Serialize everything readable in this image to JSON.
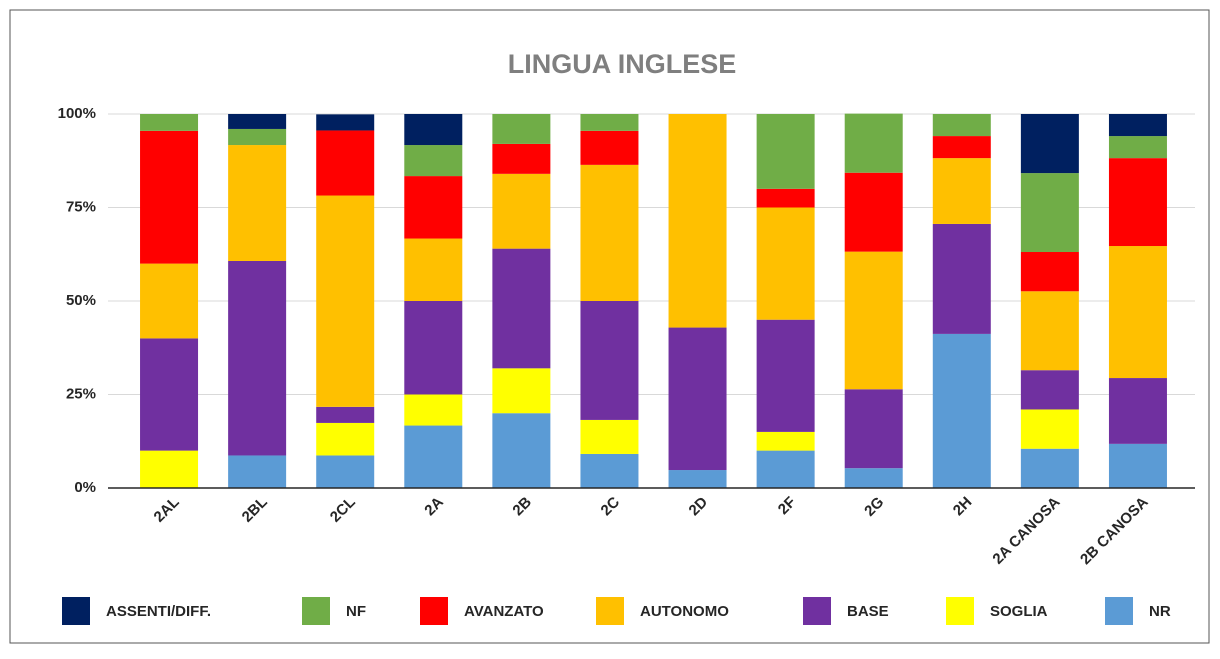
{
  "chart_data": {
    "type": "stacked_bar",
    "title": "LINGUA INGLESE",
    "categories": [
      "2AL",
      "2BL",
      "2CL",
      "2A",
      "2B",
      "2C",
      "2D",
      "2F",
      "2G",
      "2H",
      "2A CANOSA",
      "2B CANOSA"
    ],
    "series": [
      {
        "name": "ASSENTI/DIFF.",
        "color": "#002060",
        "values": [
          0,
          4,
          4.3,
          8.3,
          0,
          0,
          0,
          0,
          0,
          0,
          15.8,
          5.9
        ]
      },
      {
        "name": "NF",
        "color": "#70ad47",
        "values": [
          4.5,
          4.3,
          0,
          8.3,
          8,
          4.5,
          0,
          20,
          15.8,
          5.9,
          21.1,
          5.9
        ]
      },
      {
        "name": "AVANZATO",
        "color": "#ff0000",
        "values": [
          35.5,
          0,
          17.4,
          16.7,
          8,
          9.1,
          0,
          5,
          21.1,
          5.9,
          10.5,
          23.5
        ]
      },
      {
        "name": "AUTONOMO",
        "color": "#ffc000",
        "values": [
          20,
          31,
          56.5,
          16.7,
          20,
          36.4,
          57.1,
          30,
          36.8,
          17.6,
          21.1,
          35.3
        ]
      },
      {
        "name": "BASE",
        "color": "#7030a0",
        "values": [
          30,
          52,
          4.3,
          25,
          32,
          31.8,
          38.1,
          30,
          21.1,
          29.4,
          10.5,
          17.6
        ]
      },
      {
        "name": "SOGLIA",
        "color": "#ffff00",
        "values": [
          10,
          0,
          8.7,
          8.3,
          12,
          9.1,
          0,
          5,
          0,
          0,
          10.5,
          0
        ]
      },
      {
        "name": "NR",
        "color": "#5b9bd5",
        "values": [
          0,
          8.7,
          8.7,
          16.7,
          20,
          9.1,
          4.8,
          10,
          5.3,
          41.2,
          10.5,
          11.8
        ]
      }
    ],
    "ylim": [
      0,
      100
    ],
    "yticks": [
      {
        "value": 0,
        "label": "0%"
      },
      {
        "value": 25,
        "label": "25%"
      },
      {
        "value": 50,
        "label": "50%"
      },
      {
        "value": 75,
        "label": "75%"
      },
      {
        "value": 100,
        "label": "100%"
      }
    ],
    "grid": true,
    "legend": "bottom"
  }
}
